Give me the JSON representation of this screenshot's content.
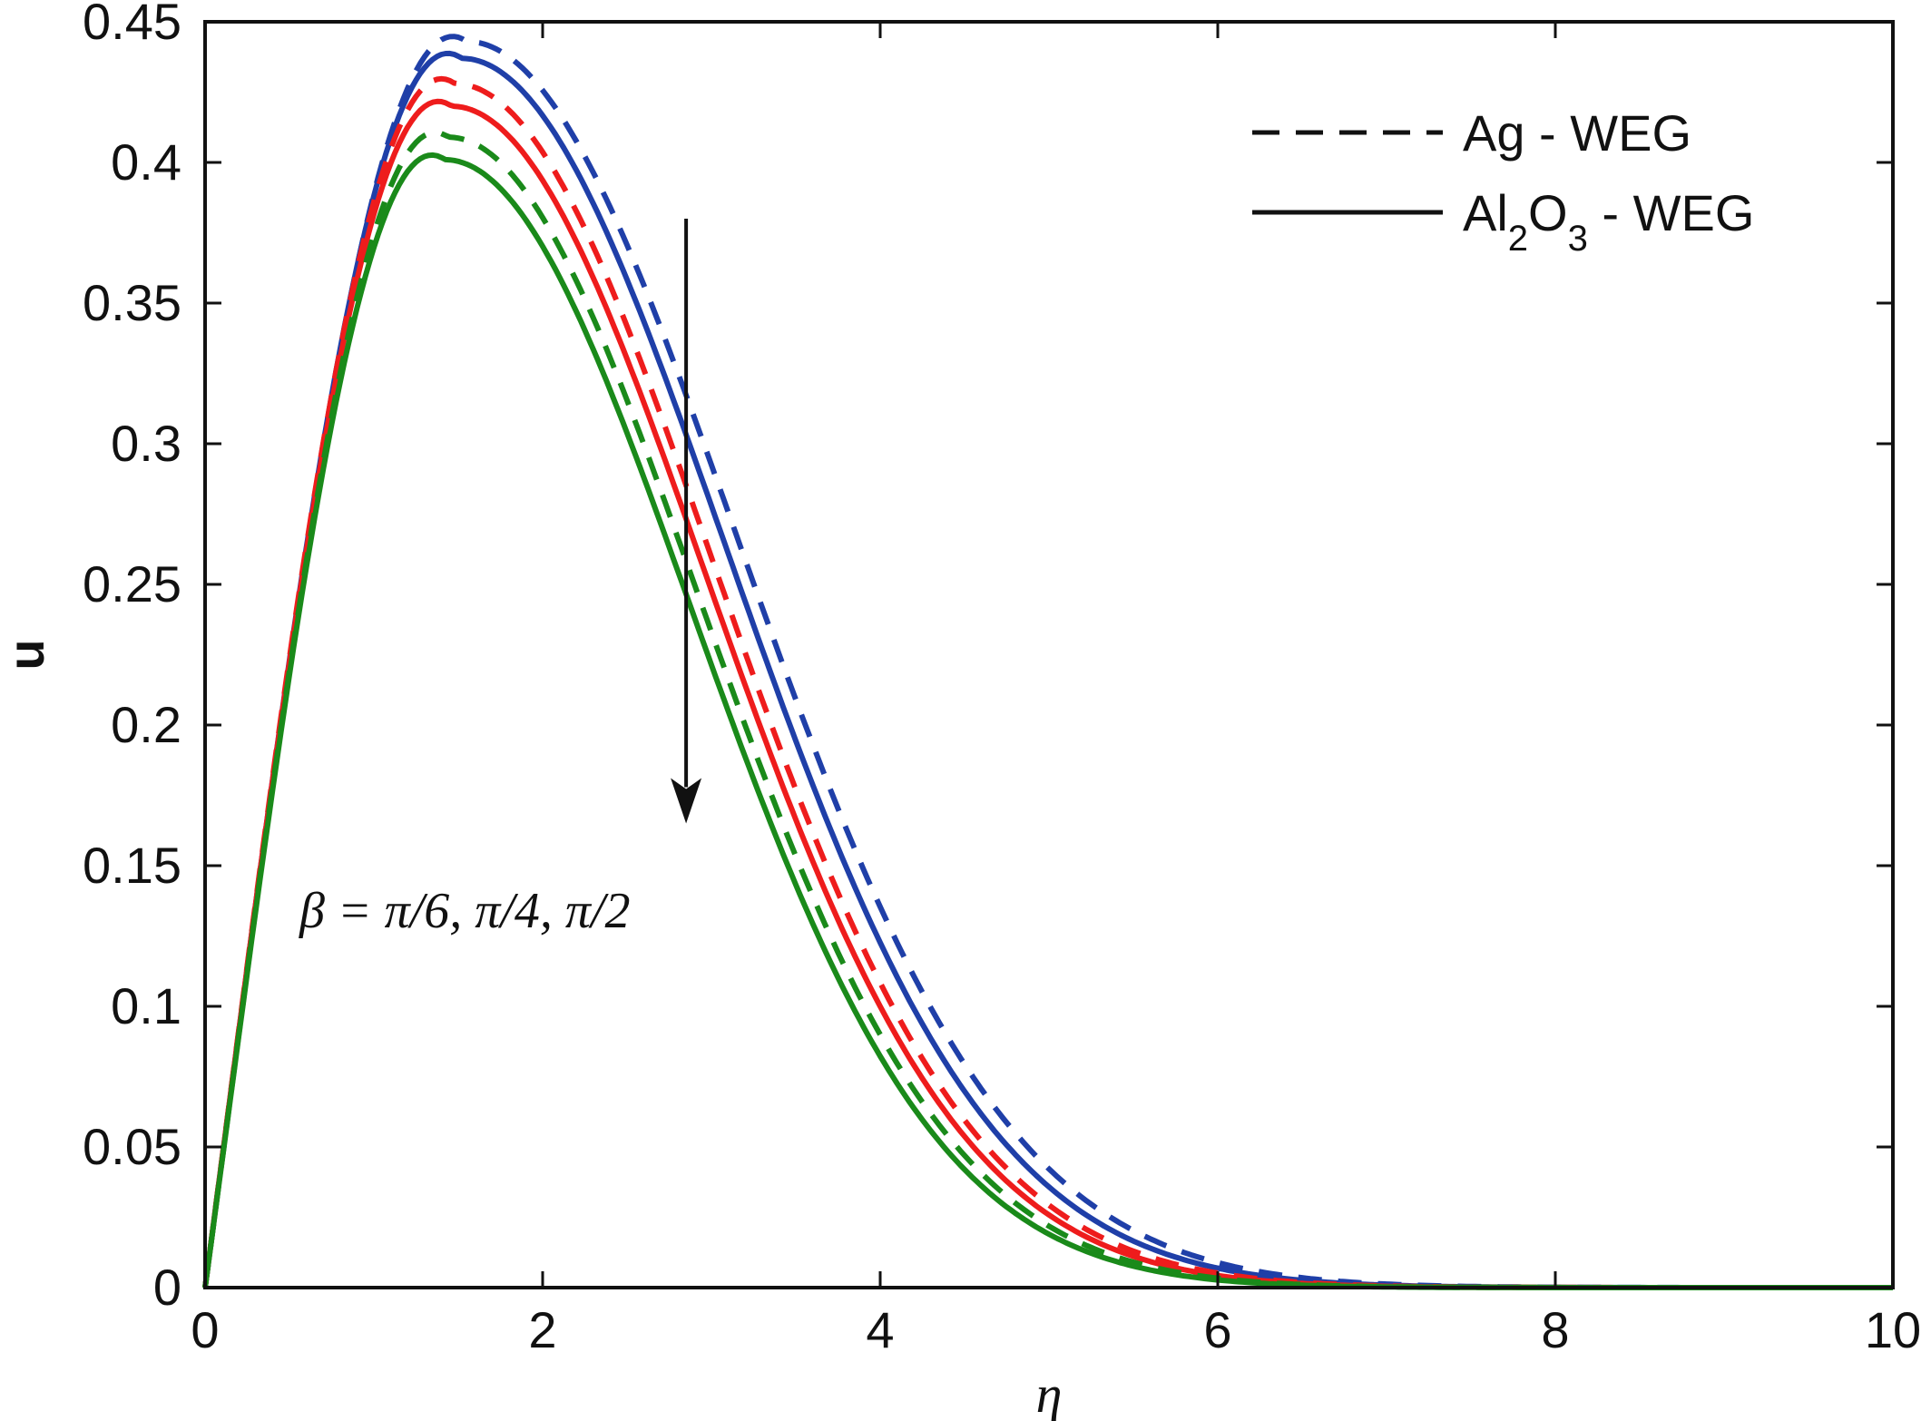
{
  "chart_data": {
    "type": "line",
    "xlabel": "η",
    "ylabel": "u",
    "xlim": [
      0,
      10
    ],
    "ylim": [
      0,
      0.45
    ],
    "x_ticks": [
      "0",
      "2",
      "4",
      "6",
      "8",
      "10"
    ],
    "y_ticks": [
      "0",
      "0.05",
      "0.1",
      "0.15",
      "0.2",
      "0.25",
      "0.3",
      "0.35",
      "0.4",
      "0.45"
    ],
    "grid": false,
    "legend_position": "top-right",
    "legend": [
      {
        "label": "Ag - WEG",
        "style": "dashed"
      },
      {
        "label_main": "Al",
        "sub1": "2",
        "mid": "O",
        "sub2": "3",
        "tail": " - WEG",
        "style": "solid"
      }
    ],
    "annotation": {
      "text": "β = π/6, π/4, π/2",
      "arrow": {
        "x": 2.85,
        "y_from": 0.38,
        "y_to": 0.165
      }
    },
    "colors": {
      "blue": "#1f3fa8",
      "red": "#ee1c1c",
      "green": "#1a8a1a",
      "axis": "#111111"
    },
    "series": [
      {
        "style": "dashed",
        "color": "blue",
        "peak": {
          "x": 1.55,
          "y": 0.443
        },
        "fall_width": 2.25
      },
      {
        "style": "solid",
        "color": "blue",
        "peak": {
          "x": 1.52,
          "y": 0.437
        },
        "fall_width": 2.2
      },
      {
        "style": "dashed",
        "color": "red",
        "peak": {
          "x": 1.48,
          "y": 0.428
        },
        "fall_width": 2.15
      },
      {
        "style": "solid",
        "color": "red",
        "peak": {
          "x": 1.46,
          "y": 0.42
        },
        "fall_width": 2.12
      },
      {
        "style": "dashed",
        "color": "green",
        "peak": {
          "x": 1.44,
          "y": 0.409
        },
        "fall_width": 2.08
      },
      {
        "style": "solid",
        "color": "green",
        "peak": {
          "x": 1.42,
          "y": 0.401
        },
        "fall_width": 2.05
      }
    ]
  }
}
